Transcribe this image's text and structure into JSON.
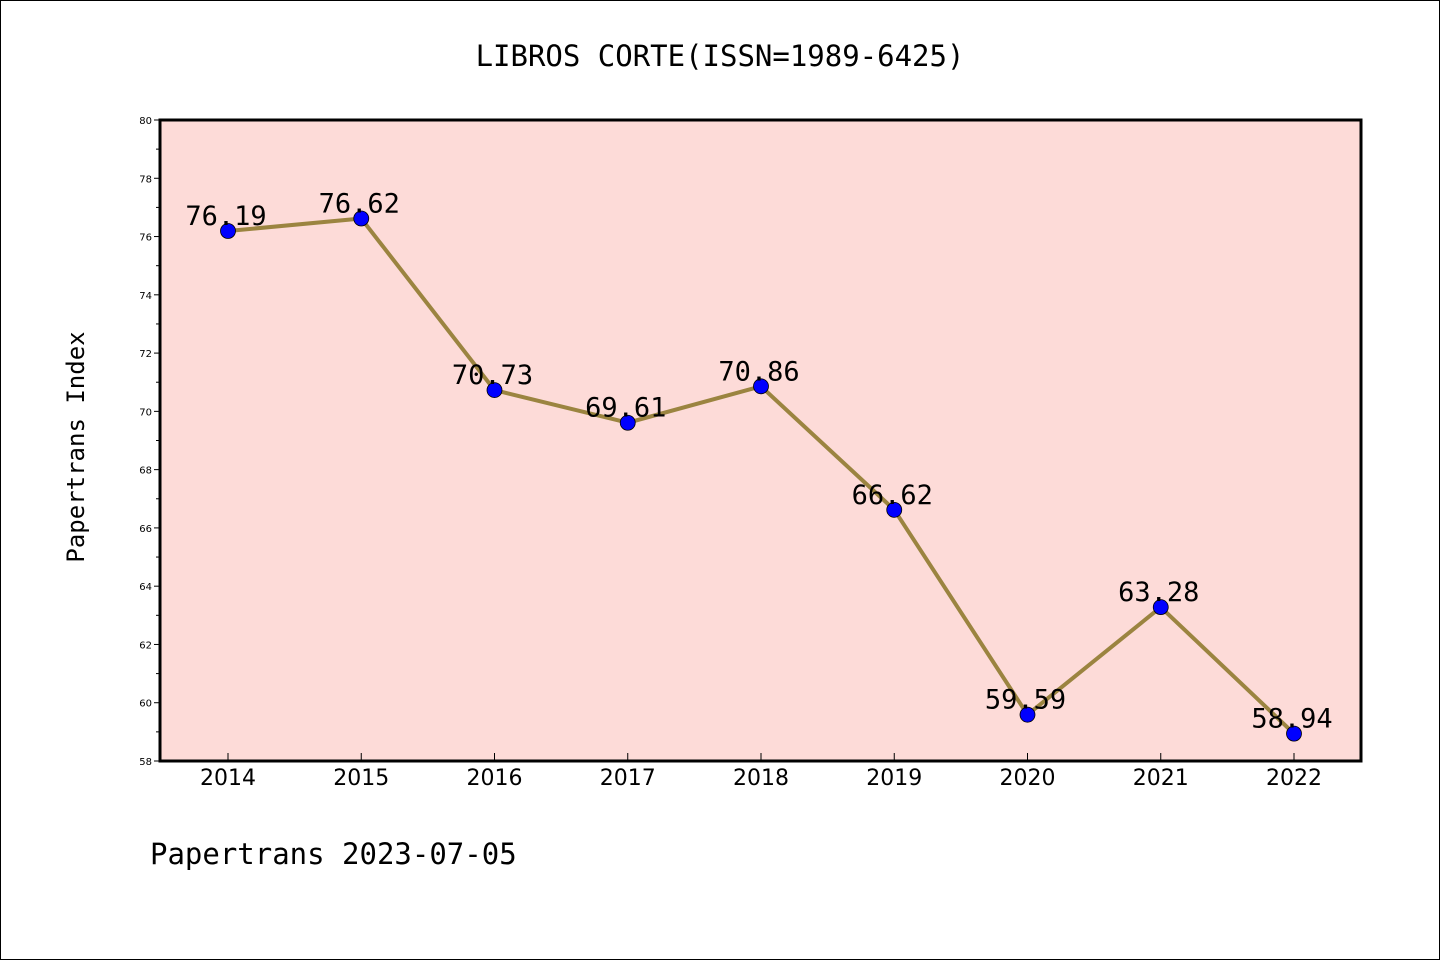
{
  "chart_data": {
    "type": "line",
    "title": "LIBROS CORTE(ISSN=1989-6425)",
    "ylabel": "Papertrans Index",
    "xlabel": "",
    "categories": [
      "2014",
      "2015",
      "2016",
      "2017",
      "2018",
      "2019",
      "2020",
      "2021",
      "2022"
    ],
    "series": [
      {
        "values": [
          76.19,
          76.62,
          70.73,
          69.61,
          70.86,
          66.62,
          59.59,
          63.28,
          58.94
        ],
        "labels": [
          "76.19",
          "76.62",
          "70.73",
          "69.61",
          "70.86",
          "66.62",
          "59.59",
          "63.28",
          "58.94"
        ]
      }
    ],
    "ylim": [
      58,
      80
    ],
    "yticks": [
      "58",
      "60",
      "62",
      "64",
      "66",
      "68",
      "70",
      "72",
      "74",
      "76",
      "78",
      "80"
    ],
    "colors": {
      "plot_background": "#fddbd8",
      "line": "#9b8440",
      "marker": "#0000ff"
    },
    "grid": false,
    "footer": "Papertrans 2023-07-05"
  }
}
